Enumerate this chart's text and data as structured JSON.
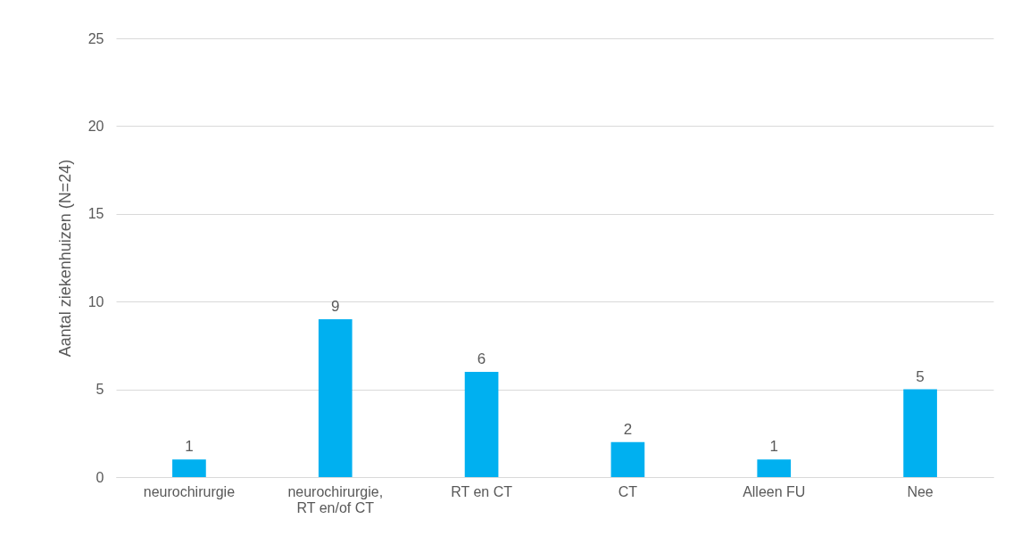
{
  "chart_data": {
    "type": "bar",
    "ylabel": "Aantal ziekenhuizen (N=24)",
    "categories": [
      "neurochirurgie",
      "neurochirurgie, RT en/of CT",
      "RT en CT",
      "CT",
      "Alleen FU",
      "Nee"
    ],
    "values": [
      1,
      9,
      6,
      2,
      1,
      5
    ],
    "color": "#00b0f0",
    "ylim": [
      0,
      25
    ],
    "yticks": [
      0,
      5,
      10,
      15,
      20,
      25
    ],
    "grid": "y",
    "data_labels": true
  }
}
